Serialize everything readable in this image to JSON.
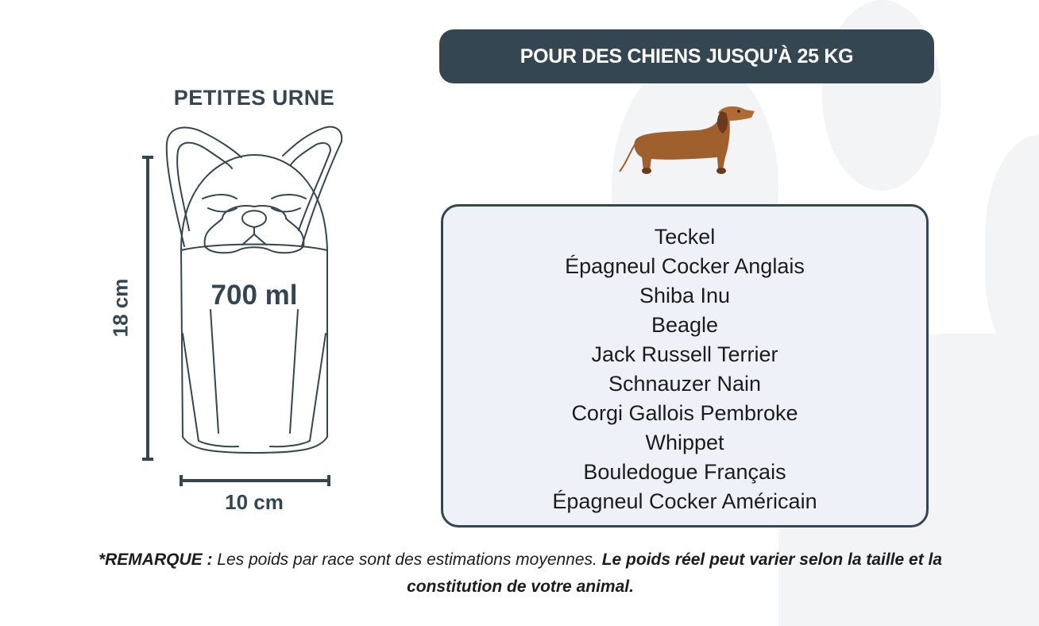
{
  "title": "PETITES URNE",
  "capacity": "700 ml",
  "height_label": "18 cm",
  "width_label": "10 cm",
  "banner": "POUR DES CHIENS JUSQU'À 25 KG",
  "breeds": [
    "Teckel",
    "Épagneul Cocker Anglais",
    "Shiba Inu",
    "Beagle",
    "Jack Russell Terrier",
    "Schnauzer Nain",
    "Corgi Gallois Pembroke",
    "Whippet",
    "Bouledogue Français",
    "Épagneul Cocker Américain"
  ],
  "note": {
    "label": "*REMARQUE :",
    "text": " Les poids par race sont des estimations moyennes. ",
    "emphasis": "Le poids réel peut varier selon la taille et la constitution de votre animal."
  },
  "colors": {
    "primary": "#344652",
    "list_bg": "#eef2f8",
    "dog": "#a0602e"
  }
}
